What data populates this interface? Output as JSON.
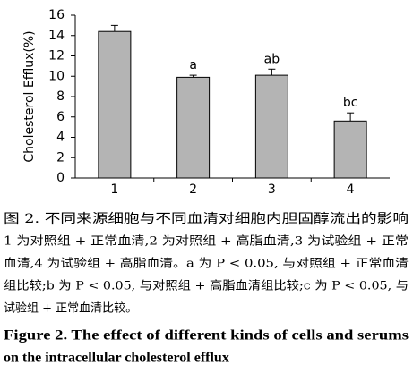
{
  "chart_data": {
    "type": "bar",
    "ylabel": "Cholesterol Efflux(%)",
    "categories": [
      "1",
      "2",
      "3",
      "4"
    ],
    "values": [
      14.4,
      9.9,
      10.1,
      5.6
    ],
    "errors": [
      0.6,
      0.2,
      0.6,
      0.8
    ],
    "annotations": [
      null,
      "a",
      "ab",
      "bc"
    ],
    "color": "#b4b4b4",
    "ylim": [
      0,
      16
    ],
    "yticks": [
      0,
      2,
      4,
      6,
      8,
      10,
      12,
      14,
      16
    ],
    "grid": false
  },
  "caption": {
    "title": "图 2.  不同来源细胞与不同血清对细胞内胆固醇流出的影响",
    "lines": [
      "1 为对照组 + 正常血清,2 为对照组 + 高脂血清,3 为试验组 + 正常",
      "血清,4 为试验组 + 高脂血清。a 为 P < 0.05, 与对照组 + 正常血清",
      "组比较;b 为 P < 0.05, 与对照组 + 高脂血清组比较;c 为 P < 0.05, 与",
      "试验组 + 正常血清比较。"
    ],
    "english": [
      "Figure 2.  The effect of different kinds of cells and serums",
      "on the intracellular cholesterol efflux"
    ]
  }
}
